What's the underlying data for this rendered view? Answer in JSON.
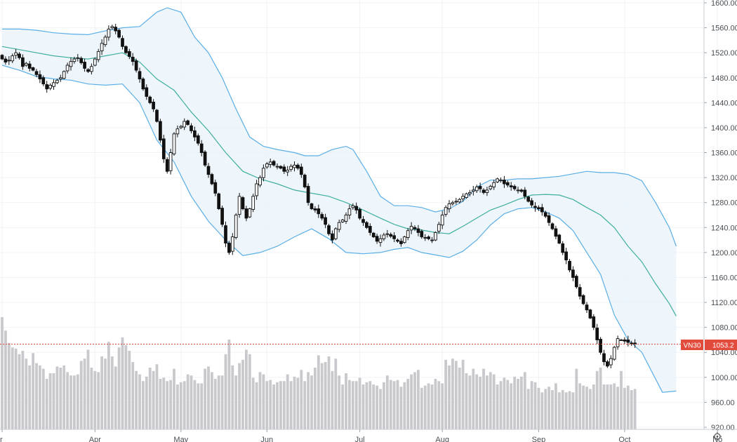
{
  "chart_data": {
    "type": "candlestick",
    "symbol": "VN30",
    "last_price": 1053.2,
    "last_price_label": "1053.2",
    "y_ticks": [
      920,
      960,
      1000,
      1040,
      1080,
      1120,
      1160,
      1200,
      1240,
      1280,
      1320,
      1360,
      1400,
      1440,
      1480,
      1520,
      1560,
      1600
    ],
    "y_tick_labels": [
      "920.00",
      "960.00",
      "1000.00",
      "1040.00",
      "1080.00",
      "1120.00",
      "1160.00",
      "1200.00",
      "1240.00",
      "1280.00",
      "1320.00",
      "1360.00",
      "1400.00",
      "1440.00",
      "1480.00",
      "1520.00",
      "1560.00",
      "1600.00"
    ],
    "x_labels": [
      "r",
      "Apr",
      "May",
      "Jun",
      "Jul",
      "Aug",
      "Sep",
      "Oct",
      "No"
    ],
    "x_label_bar_index": [
      0,
      27,
      52,
      77,
      104,
      128,
      156,
      181,
      208
    ],
    "series_close": [
      1510,
      1505,
      1508,
      1515,
      1520,
      1512,
      1498,
      1503,
      1495,
      1492,
      1485,
      1478,
      1470,
      1462,
      1468,
      1472,
      1476,
      1480,
      1490,
      1500,
      1506,
      1510,
      1512,
      1504,
      1495,
      1490,
      1498,
      1510,
      1522,
      1535,
      1545,
      1558,
      1562,
      1555,
      1545,
      1530,
      1520,
      1514,
      1506,
      1492,
      1478,
      1462,
      1450,
      1440,
      1430,
      1410,
      1380,
      1350,
      1330,
      1360,
      1390,
      1398,
      1402,
      1410,
      1405,
      1395,
      1385,
      1375,
      1360,
      1340,
      1325,
      1310,
      1295,
      1270,
      1245,
      1215,
      1200,
      1225,
      1260,
      1290,
      1270,
      1255,
      1270,
      1290,
      1310,
      1320,
      1335,
      1342,
      1345,
      1340,
      1338,
      1335,
      1330,
      1332,
      1338,
      1340,
      1335,
      1325,
      1305,
      1280,
      1270,
      1268,
      1262,
      1255,
      1245,
      1230,
      1220,
      1238,
      1248,
      1252,
      1260,
      1270,
      1275,
      1268,
      1255,
      1248,
      1240,
      1232,
      1225,
      1218,
      1222,
      1228,
      1230,
      1226,
      1222,
      1218,
      1214,
      1225,
      1235,
      1242,
      1238,
      1232,
      1225,
      1224,
      1222,
      1220,
      1232,
      1245,
      1260,
      1272,
      1278,
      1280,
      1282,
      1285,
      1290,
      1294,
      1296,
      1300,
      1305,
      1302,
      1296,
      1300,
      1306,
      1312,
      1318,
      1316,
      1310,
      1308,
      1305,
      1302,
      1300,
      1298,
      1290,
      1282,
      1276,
      1272,
      1270,
      1265,
      1258,
      1248,
      1238,
      1226,
      1215,
      1200,
      1188,
      1172,
      1160,
      1145,
      1130,
      1118,
      1108,
      1095,
      1080,
      1060,
      1040,
      1025,
      1018,
      1030,
      1048,
      1062,
      1060,
      1058,
      1056,
      1054,
      1053.2
    ],
    "bands": [
      {
        "name": "upper",
        "points": [
          [
            0,
            1558
          ],
          [
            5,
            1558
          ],
          [
            10,
            1556
          ],
          [
            15,
            1552
          ],
          [
            20,
            1550
          ],
          [
            25,
            1549
          ],
          [
            30,
            1555
          ],
          [
            35,
            1560
          ],
          [
            40,
            1562
          ],
          [
            45,
            1585
          ],
          [
            48,
            1592
          ],
          [
            52,
            1585
          ],
          [
            56,
            1545
          ],
          [
            60,
            1520
          ],
          [
            64,
            1480
          ],
          [
            68,
            1430
          ],
          [
            72,
            1385
          ],
          [
            76,
            1370
          ],
          [
            80,
            1365
          ],
          [
            85,
            1360
          ],
          [
            88,
            1355
          ],
          [
            92,
            1355
          ],
          [
            96,
            1365
          ],
          [
            100,
            1370
          ],
          [
            102,
            1365
          ],
          [
            106,
            1330
          ],
          [
            110,
            1290
          ],
          [
            114,
            1275
          ],
          [
            118,
            1275
          ],
          [
            122,
            1272
          ],
          [
            126,
            1265
          ],
          [
            130,
            1270
          ],
          [
            134,
            1282
          ],
          [
            138,
            1305
          ],
          [
            142,
            1316
          ],
          [
            146,
            1316
          ],
          [
            150,
            1318
          ],
          [
            154,
            1318
          ],
          [
            158,
            1320
          ],
          [
            162,
            1322
          ],
          [
            166,
            1326
          ],
          [
            170,
            1330
          ],
          [
            174,
            1328
          ],
          [
            178,
            1328
          ],
          [
            182,
            1325
          ],
          [
            186,
            1315
          ],
          [
            190,
            1280
          ],
          [
            194,
            1240
          ],
          [
            196,
            1210
          ]
        ]
      },
      {
        "name": "middle",
        "points": [
          [
            0,
            1530
          ],
          [
            5,
            1525
          ],
          [
            10,
            1520
          ],
          [
            15,
            1515
          ],
          [
            20,
            1512
          ],
          [
            25,
            1510
          ],
          [
            30,
            1515
          ],
          [
            35,
            1520
          ],
          [
            40,
            1505
          ],
          [
            45,
            1478
          ],
          [
            50,
            1460
          ],
          [
            55,
            1425
          ],
          [
            60,
            1395
          ],
          [
            65,
            1360
          ],
          [
            70,
            1330
          ],
          [
            75,
            1318
          ],
          [
            80,
            1310
          ],
          [
            85,
            1300
          ],
          [
            90,
            1295
          ],
          [
            95,
            1290
          ],
          [
            100,
            1280
          ],
          [
            105,
            1268
          ],
          [
            110,
            1255
          ],
          [
            114,
            1245
          ],
          [
            118,
            1238
          ],
          [
            122,
            1236
          ],
          [
            126,
            1232
          ],
          [
            130,
            1230
          ],
          [
            134,
            1242
          ],
          [
            138,
            1255
          ],
          [
            142,
            1268
          ],
          [
            146,
            1276
          ],
          [
            150,
            1285
          ],
          [
            154,
            1292
          ],
          [
            158,
            1293
          ],
          [
            162,
            1292
          ],
          [
            166,
            1285
          ],
          [
            170,
            1272
          ],
          [
            174,
            1260
          ],
          [
            178,
            1240
          ],
          [
            182,
            1210
          ],
          [
            186,
            1185
          ],
          [
            190,
            1150
          ],
          [
            194,
            1118
          ],
          [
            196,
            1098
          ]
        ]
      },
      {
        "name": "lower",
        "points": [
          [
            0,
            1500
          ],
          [
            5,
            1492
          ],
          [
            10,
            1482
          ],
          [
            15,
            1478
          ],
          [
            20,
            1476
          ],
          [
            25,
            1470
          ],
          [
            30,
            1468
          ],
          [
            35,
            1470
          ],
          [
            40,
            1440
          ],
          [
            45,
            1380
          ],
          [
            50,
            1345
          ],
          [
            55,
            1290
          ],
          [
            60,
            1250
          ],
          [
            65,
            1220
          ],
          [
            70,
            1195
          ],
          [
            75,
            1200
          ],
          [
            80,
            1210
          ],
          [
            85,
            1225
          ],
          [
            90,
            1238
          ],
          [
            95,
            1222
          ],
          [
            100,
            1200
          ],
          [
            105,
            1198
          ],
          [
            110,
            1200
          ],
          [
            114,
            1205
          ],
          [
            118,
            1208
          ],
          [
            122,
            1200
          ],
          [
            126,
            1196
          ],
          [
            130,
            1192
          ],
          [
            134,
            1202
          ],
          [
            138,
            1220
          ],
          [
            142,
            1244
          ],
          [
            146,
            1262
          ],
          [
            150,
            1270
          ],
          [
            154,
            1272
          ],
          [
            158,
            1265
          ],
          [
            162,
            1255
          ],
          [
            166,
            1235
          ],
          [
            170,
            1200
          ],
          [
            174,
            1165
          ],
          [
            178,
            1100
          ],
          [
            182,
            1060
          ],
          [
            186,
            1040
          ],
          [
            189,
            1008
          ],
          [
            192,
            976
          ],
          [
            196,
            978
          ]
        ]
      }
    ],
    "volume": [
      100,
      88,
      77,
      73,
      72,
      67,
      70,
      63,
      57,
      68,
      59,
      57,
      54,
      45,
      50,
      50,
      56,
      55,
      57,
      51,
      48,
      48,
      49,
      61,
      63,
      71,
      55,
      52,
      51,
      65,
      63,
      78,
      65,
      56,
      73,
      82,
      75,
      70,
      60,
      52,
      49,
      43,
      47,
      55,
      52,
      58,
      45,
      46,
      43,
      44,
      54,
      40,
      42,
      43,
      49,
      48,
      44,
      41,
      41,
      54,
      56,
      51,
      45,
      48,
      48,
      67,
      80,
      57,
      48,
      59,
      62,
      71,
      67,
      46,
      42,
      51,
      49,
      43,
      44,
      40,
      42,
      43,
      43,
      49,
      43,
      47,
      46,
      53,
      43,
      51,
      48,
      55,
      66,
      59,
      60,
      65,
      52,
      63,
      48,
      40,
      50,
      44,
      43,
      43,
      46,
      40,
      42,
      43,
      40,
      39,
      36,
      42,
      48,
      44,
      43,
      44,
      38,
      42,
      45,
      49,
      51,
      53,
      37,
      39,
      41,
      40,
      45,
      43,
      41,
      62,
      57,
      63,
      61,
      55,
      62,
      50,
      48,
      54,
      49,
      47,
      54,
      48,
      51,
      49,
      40,
      43,
      46,
      44,
      41,
      47,
      45,
      47,
      51,
      36,
      43,
      42,
      37,
      33,
      36,
      38,
      35,
      41,
      33,
      35,
      33,
      34,
      33,
      54,
      41,
      39,
      38,
      36,
      40,
      52,
      55,
      40,
      40,
      40,
      41,
      38,
      52,
      37,
      39,
      35,
      36
    ]
  }
}
